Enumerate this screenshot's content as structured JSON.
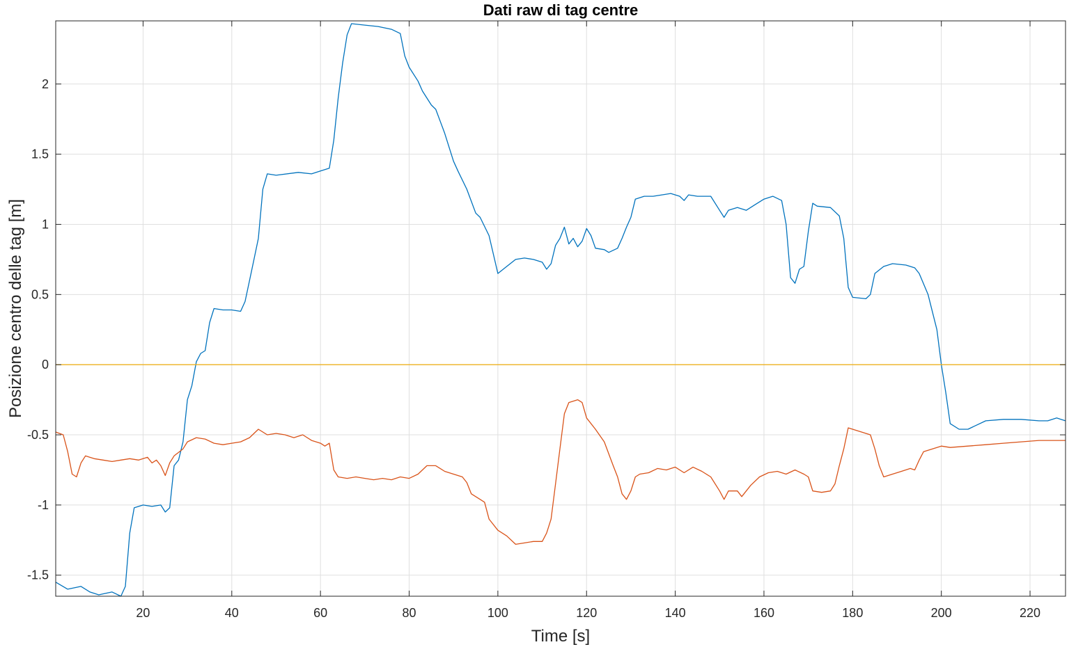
{
  "chart_data": {
    "type": "line",
    "title": "Dati raw di tag centre",
    "xlabel": "Time [s]",
    "ylabel": "Posizione centro delle tag [m]",
    "xlim": [
      0.3,
      228
    ],
    "ylim": [
      -1.65,
      2.45
    ],
    "xticks": [
      20,
      40,
      60,
      80,
      100,
      120,
      140,
      160,
      180,
      200,
      220
    ],
    "xtick_labels": [
      "20",
      "40",
      "60",
      "80",
      "100",
      "120",
      "140",
      "160",
      "180",
      "200",
      "220"
    ],
    "yticks": [
      -1.5,
      -1,
      -0.5,
      0,
      0.5,
      1,
      1.5,
      2
    ],
    "ytick_labels": [
      "-1.5",
      "-1",
      "-0.5",
      "0",
      "0.5",
      "1",
      "1.5",
      "2"
    ],
    "grid": true,
    "series": [
      {
        "color": "#0072BD",
        "points": [
          [
            0.3,
            -1.55
          ],
          [
            3,
            -1.6
          ],
          [
            6,
            -1.58
          ],
          [
            8,
            -1.62
          ],
          [
            10,
            -1.64
          ],
          [
            13,
            -1.62
          ],
          [
            15,
            -1.65
          ],
          [
            16,
            -1.58
          ],
          [
            17,
            -1.2
          ],
          [
            18,
            -1.02
          ],
          [
            20,
            -1.0
          ],
          [
            22,
            -1.01
          ],
          [
            24,
            -1.0
          ],
          [
            25,
            -1.05
          ],
          [
            26,
            -1.02
          ],
          [
            27,
            -0.72
          ],
          [
            28,
            -0.68
          ],
          [
            29,
            -0.55
          ],
          [
            30,
            -0.25
          ],
          [
            31,
            -0.15
          ],
          [
            32,
            0.02
          ],
          [
            33,
            0.08
          ],
          [
            34,
            0.1
          ],
          [
            35,
            0.3
          ],
          [
            36,
            0.4
          ],
          [
            38,
            0.39
          ],
          [
            40,
            0.39
          ],
          [
            42,
            0.38
          ],
          [
            43,
            0.45
          ],
          [
            44,
            0.6
          ],
          [
            45,
            0.75
          ],
          [
            46,
            0.9
          ],
          [
            47,
            1.25
          ],
          [
            48,
            1.36
          ],
          [
            50,
            1.35
          ],
          [
            55,
            1.37
          ],
          [
            58,
            1.36
          ],
          [
            60,
            1.38
          ],
          [
            62,
            1.4
          ],
          [
            63,
            1.6
          ],
          [
            64,
            1.9
          ],
          [
            65,
            2.15
          ],
          [
            66,
            2.35
          ],
          [
            67,
            2.43
          ],
          [
            70,
            2.42
          ],
          [
            73,
            2.41
          ],
          [
            76,
            2.39
          ],
          [
            78,
            2.36
          ],
          [
            79,
            2.2
          ],
          [
            80,
            2.12
          ],
          [
            82,
            2.02
          ],
          [
            83,
            1.95
          ],
          [
            85,
            1.85
          ],
          [
            86,
            1.82
          ],
          [
            88,
            1.65
          ],
          [
            90,
            1.45
          ],
          [
            91,
            1.38
          ],
          [
            93,
            1.25
          ],
          [
            95,
            1.08
          ],
          [
            96,
            1.05
          ],
          [
            98,
            0.92
          ],
          [
            100,
            0.65
          ],
          [
            102,
            0.7
          ],
          [
            104,
            0.75
          ],
          [
            106,
            0.76
          ],
          [
            108,
            0.75
          ],
          [
            110,
            0.73
          ],
          [
            111,
            0.68
          ],
          [
            112,
            0.72
          ],
          [
            113,
            0.85
          ],
          [
            114,
            0.9
          ],
          [
            115,
            0.98
          ],
          [
            116,
            0.86
          ],
          [
            117,
            0.9
          ],
          [
            118,
            0.84
          ],
          [
            119,
            0.88
          ],
          [
            120,
            0.97
          ],
          [
            121,
            0.92
          ],
          [
            122,
            0.83
          ],
          [
            124,
            0.82
          ],
          [
            125,
            0.8
          ],
          [
            127,
            0.83
          ],
          [
            128,
            0.9
          ],
          [
            129,
            0.98
          ],
          [
            130,
            1.05
          ],
          [
            131,
            1.18
          ],
          [
            133,
            1.2
          ],
          [
            135,
            1.2
          ],
          [
            137,
            1.21
          ],
          [
            139,
            1.22
          ],
          [
            141,
            1.2
          ],
          [
            142,
            1.17
          ],
          [
            143,
            1.21
          ],
          [
            145,
            1.2
          ],
          [
            148,
            1.2
          ],
          [
            150,
            1.1
          ],
          [
            151,
            1.05
          ],
          [
            152,
            1.1
          ],
          [
            154,
            1.12
          ],
          [
            156,
            1.1
          ],
          [
            158,
            1.14
          ],
          [
            160,
            1.18
          ],
          [
            162,
            1.2
          ],
          [
            164,
            1.17
          ],
          [
            165,
            1.0
          ],
          [
            166,
            0.62
          ],
          [
            167,
            0.58
          ],
          [
            168,
            0.68
          ],
          [
            169,
            0.7
          ],
          [
            170,
            0.95
          ],
          [
            171,
            1.15
          ],
          [
            172,
            1.13
          ],
          [
            175,
            1.12
          ],
          [
            177,
            1.06
          ],
          [
            178,
            0.9
          ],
          [
            179,
            0.55
          ],
          [
            180,
            0.48
          ],
          [
            183,
            0.47
          ],
          [
            184,
            0.5
          ],
          [
            185,
            0.65
          ],
          [
            187,
            0.7
          ],
          [
            189,
            0.72
          ],
          [
            192,
            0.71
          ],
          [
            194,
            0.69
          ],
          [
            195,
            0.65
          ],
          [
            197,
            0.5
          ],
          [
            199,
            0.25
          ],
          [
            200,
            0.0
          ],
          [
            201,
            -0.2
          ],
          [
            202,
            -0.42
          ],
          [
            204,
            -0.46
          ],
          [
            206,
            -0.46
          ],
          [
            208,
            -0.43
          ],
          [
            210,
            -0.4
          ],
          [
            214,
            -0.39
          ],
          [
            218,
            -0.39
          ],
          [
            222,
            -0.4
          ],
          [
            224,
            -0.4
          ],
          [
            226,
            -0.38
          ],
          [
            228,
            -0.4
          ]
        ]
      },
      {
        "color": "#D95319",
        "points": [
          [
            0.3,
            -0.48
          ],
          [
            2,
            -0.5
          ],
          [
            3,
            -0.62
          ],
          [
            4,
            -0.78
          ],
          [
            5,
            -0.8
          ],
          [
            6,
            -0.7
          ],
          [
            7,
            -0.65
          ],
          [
            9,
            -0.67
          ],
          [
            11,
            -0.68
          ],
          [
            13,
            -0.69
          ],
          [
            15,
            -0.68
          ],
          [
            17,
            -0.67
          ],
          [
            19,
            -0.68
          ],
          [
            21,
            -0.66
          ],
          [
            22,
            -0.7
          ],
          [
            23,
            -0.68
          ],
          [
            24,
            -0.72
          ],
          [
            25,
            -0.79
          ],
          [
            26,
            -0.7
          ],
          [
            27,
            -0.65
          ],
          [
            29,
            -0.6
          ],
          [
            30,
            -0.55
          ],
          [
            32,
            -0.52
          ],
          [
            34,
            -0.53
          ],
          [
            36,
            -0.56
          ],
          [
            38,
            -0.57
          ],
          [
            40,
            -0.56
          ],
          [
            42,
            -0.55
          ],
          [
            44,
            -0.52
          ],
          [
            46,
            -0.46
          ],
          [
            48,
            -0.5
          ],
          [
            50,
            -0.49
          ],
          [
            52,
            -0.5
          ],
          [
            54,
            -0.52
          ],
          [
            56,
            -0.5
          ],
          [
            58,
            -0.54
          ],
          [
            60,
            -0.56
          ],
          [
            61,
            -0.58
          ],
          [
            62,
            -0.56
          ],
          [
            63,
            -0.75
          ],
          [
            64,
            -0.8
          ],
          [
            66,
            -0.81
          ],
          [
            68,
            -0.8
          ],
          [
            70,
            -0.81
          ],
          [
            72,
            -0.82
          ],
          [
            74,
            -0.81
          ],
          [
            76,
            -0.82
          ],
          [
            78,
            -0.8
          ],
          [
            80,
            -0.81
          ],
          [
            82,
            -0.78
          ],
          [
            84,
            -0.72
          ],
          [
            86,
            -0.72
          ],
          [
            88,
            -0.76
          ],
          [
            90,
            -0.78
          ],
          [
            92,
            -0.8
          ],
          [
            93,
            -0.84
          ],
          [
            94,
            -0.92
          ],
          [
            96,
            -0.96
          ],
          [
            97,
            -0.98
          ],
          [
            98,
            -1.1
          ],
          [
            100,
            -1.18
          ],
          [
            102,
            -1.22
          ],
          [
            104,
            -1.28
          ],
          [
            106,
            -1.27
          ],
          [
            108,
            -1.26
          ],
          [
            110,
            -1.26
          ],
          [
            111,
            -1.2
          ],
          [
            112,
            -1.1
          ],
          [
            113,
            -0.85
          ],
          [
            114,
            -0.6
          ],
          [
            115,
            -0.35
          ],
          [
            116,
            -0.27
          ],
          [
            118,
            -0.25
          ],
          [
            119,
            -0.27
          ],
          [
            120,
            -0.38
          ],
          [
            122,
            -0.46
          ],
          [
            124,
            -0.55
          ],
          [
            126,
            -0.72
          ],
          [
            127,
            -0.8
          ],
          [
            128,
            -0.92
          ],
          [
            129,
            -0.96
          ],
          [
            130,
            -0.9
          ],
          [
            131,
            -0.8
          ],
          [
            132,
            -0.78
          ],
          [
            134,
            -0.77
          ],
          [
            136,
            -0.74
          ],
          [
            138,
            -0.75
          ],
          [
            140,
            -0.73
          ],
          [
            142,
            -0.77
          ],
          [
            144,
            -0.73
          ],
          [
            146,
            -0.76
          ],
          [
            148,
            -0.8
          ],
          [
            150,
            -0.9
          ],
          [
            151,
            -0.96
          ],
          [
            152,
            -0.9
          ],
          [
            154,
            -0.9
          ],
          [
            155,
            -0.94
          ],
          [
            157,
            -0.86
          ],
          [
            159,
            -0.8
          ],
          [
            161,
            -0.77
          ],
          [
            163,
            -0.76
          ],
          [
            165,
            -0.78
          ],
          [
            167,
            -0.75
          ],
          [
            169,
            -0.78
          ],
          [
            170,
            -0.8
          ],
          [
            171,
            -0.9
          ],
          [
            173,
            -0.91
          ],
          [
            175,
            -0.9
          ],
          [
            176,
            -0.85
          ],
          [
            177,
            -0.72
          ],
          [
            178,
            -0.6
          ],
          [
            179,
            -0.45
          ],
          [
            180,
            -0.46
          ],
          [
            182,
            -0.48
          ],
          [
            184,
            -0.5
          ],
          [
            185,
            -0.6
          ],
          [
            186,
            -0.72
          ],
          [
            187,
            -0.8
          ],
          [
            189,
            -0.78
          ],
          [
            191,
            -0.76
          ],
          [
            193,
            -0.74
          ],
          [
            194,
            -0.75
          ],
          [
            195,
            -0.68
          ],
          [
            196,
            -0.62
          ],
          [
            198,
            -0.6
          ],
          [
            200,
            -0.58
          ],
          [
            202,
            -0.59
          ],
          [
            206,
            -0.58
          ],
          [
            210,
            -0.57
          ],
          [
            214,
            -0.56
          ],
          [
            218,
            -0.55
          ],
          [
            222,
            -0.54
          ],
          [
            226,
            -0.54
          ],
          [
            228,
            -0.54
          ]
        ]
      },
      {
        "color": "#EDB120",
        "points": [
          [
            0.3,
            0
          ],
          [
            228,
            0
          ]
        ]
      }
    ]
  }
}
